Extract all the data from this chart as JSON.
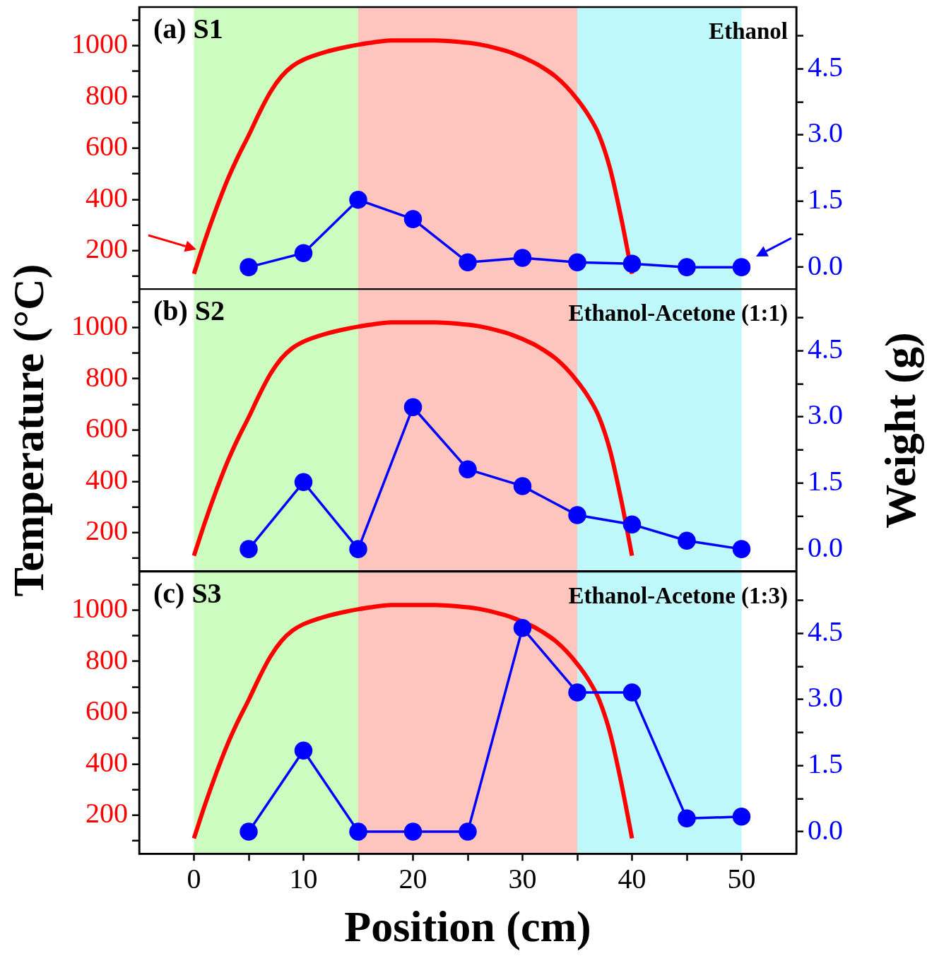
{
  "chart_data": [
    {
      "type": "line",
      "annotations": [
        "(a) S1",
        "Ethanol"
      ],
      "xlim": [
        -5,
        55
      ],
      "ylim": [
        50,
        1150
      ],
      "yticks": [
        {
          "value": 100,
          "label": null
        },
        200,
        {
          "value": 300,
          "label": null
        },
        400,
        {
          "value": 500,
          "label": null
        },
        600,
        {
          "value": 700,
          "label": null
        },
        800,
        {
          "value": 900,
          "label": null
        },
        1000,
        {
          "value": 1100,
          "label": null
        }
      ],
      "y2lim": [
        -0.5,
        5.9
      ],
      "y2ticks": [
        {
          "value": 0,
          "label": "0.0"
        },
        {
          "value": 0.75,
          "label": null
        },
        {
          "value": 1.5,
          "label": "1.5"
        },
        {
          "value": 2.25,
          "label": null
        },
        {
          "value": 3,
          "label": "3.0"
        },
        {
          "value": 3.75,
          "label": null
        },
        {
          "value": 4.5,
          "label": "4.5"
        },
        {
          "value": 5.25,
          "label": null
        }
      ],
      "tick_labels": "y",
      "bands": [
        {
          "axis": "x",
          "from": 0,
          "to": 15,
          "color": "#ccfcc0"
        },
        {
          "axis": "x",
          "from": 15,
          "to": 35,
          "color": "#fdc5bd"
        },
        {
          "axis": "x",
          "from": 35,
          "to": 50,
          "color": "#bff8fb"
        }
      ],
      "series": [
        {
          "color": "#ff0000",
          "marker": "none",
          "x": [
            0,
            1,
            2,
            3,
            4,
            5,
            6,
            7,
            8,
            9,
            10,
            12,
            14,
            16,
            18,
            20,
            22,
            24,
            26,
            28,
            29,
            31,
            32,
            33,
            34,
            35,
            36,
            37,
            38,
            39,
            40
          ],
          "values": [
            110,
            240,
            360,
            470,
            565,
            650,
            740,
            820,
            880,
            920,
            945,
            975,
            995,
            1010,
            1020,
            1020,
            1020,
            1015,
            1005,
            985,
            972,
            935,
            910,
            880,
            840,
            790,
            730,
            650,
            520,
            330,
            110
          ]
        },
        {
          "axis": "y2",
          "color": "#0000ff",
          "marker": "circle",
          "x": [
            5,
            10,
            15,
            20,
            25,
            30,
            35,
            40,
            45,
            50
          ],
          "values": [
            0,
            0.32,
            1.53,
            1.09,
            0.11,
            0.21,
            0.11,
            0.08,
            0,
            0
          ]
        }
      ]
    },
    {
      "type": "line",
      "annotations": [
        "(b) S2",
        "Ethanol-Acetone (1:1)"
      ],
      "ylabel": "Temperature (°C)",
      "y2label": "Weight (g)",
      "xlim": [
        -5,
        55
      ],
      "ylim": [
        50,
        1150
      ],
      "yticks": [
        {
          "value": 100,
          "label": null
        },
        200,
        {
          "value": 300,
          "label": null
        },
        400,
        {
          "value": 500,
          "label": null
        },
        600,
        {
          "value": 700,
          "label": null
        },
        800,
        {
          "value": 900,
          "label": null
        },
        1000,
        {
          "value": 1100,
          "label": null
        }
      ],
      "y2lim": [
        -0.5,
        5.9
      ],
      "y2ticks": [
        {
          "value": 0,
          "label": "0.0"
        },
        {
          "value": 0.75,
          "label": null
        },
        {
          "value": 1.5,
          "label": "1.5"
        },
        {
          "value": 2.25,
          "label": null
        },
        {
          "value": 3,
          "label": "3.0"
        },
        {
          "value": 3.75,
          "label": null
        },
        {
          "value": 4.5,
          "label": "4.5"
        },
        {
          "value": 5.25,
          "label": null
        }
      ],
      "tick_labels": "y",
      "bands": [
        {
          "axis": "x",
          "from": 0,
          "to": 15,
          "color": "#ccfcc0"
        },
        {
          "axis": "x",
          "from": 15,
          "to": 35,
          "color": "#fdc5bd"
        },
        {
          "axis": "x",
          "from": 35,
          "to": 50,
          "color": "#bff8fb"
        }
      ],
      "series": [
        {
          "color": "#ff0000",
          "marker": "none",
          "x": [
            0,
            1,
            2,
            3,
            4,
            5,
            6,
            7,
            8,
            9,
            10,
            12,
            14,
            16,
            18,
            20,
            22,
            24,
            26,
            28,
            29,
            31,
            32,
            33,
            34,
            35,
            36,
            37,
            38,
            39,
            40
          ],
          "values": [
            110,
            240,
            360,
            470,
            565,
            650,
            740,
            820,
            880,
            920,
            945,
            975,
            995,
            1010,
            1020,
            1020,
            1020,
            1015,
            1005,
            985,
            972,
            935,
            910,
            880,
            840,
            790,
            730,
            650,
            520,
            330,
            110
          ]
        },
        {
          "axis": "y2",
          "color": "#0000ff",
          "marker": "circle",
          "x": [
            5,
            10,
            15,
            20,
            25,
            30,
            35,
            40,
            45,
            50
          ],
          "values": [
            0,
            1.52,
            0,
            3.22,
            1.81,
            1.43,
            0.77,
            0.56,
            0.19,
            0
          ]
        }
      ]
    },
    {
      "type": "line",
      "annotations": [
        "(c) S3",
        "Ethanol-Acetone (1:3)"
      ],
      "xlabel": "Position (cm)",
      "xlim": [
        -5,
        55
      ],
      "xticks": [
        0,
        {
          "value": 5,
          "label": null
        },
        10,
        {
          "value": 15,
          "label": null
        },
        20,
        {
          "value": 25,
          "label": null
        },
        30,
        {
          "value": 35,
          "label": null
        },
        40,
        {
          "value": 45,
          "label": null
        },
        50
      ],
      "ylim": [
        50,
        1150
      ],
      "yticks": [
        {
          "value": 100,
          "label": null
        },
        200,
        {
          "value": 300,
          "label": null
        },
        400,
        {
          "value": 500,
          "label": null
        },
        600,
        {
          "value": 700,
          "label": null
        },
        800,
        {
          "value": 900,
          "label": null
        },
        1000,
        {
          "value": 1100,
          "label": null
        }
      ],
      "y2lim": [
        -0.5,
        5.9
      ],
      "y2ticks": [
        {
          "value": 0,
          "label": "0.0"
        },
        {
          "value": 0.75,
          "label": null
        },
        {
          "value": 1.5,
          "label": "1.5"
        },
        {
          "value": 2.25,
          "label": null
        },
        {
          "value": 3,
          "label": "3.0"
        },
        {
          "value": 3.75,
          "label": null
        },
        {
          "value": 4.5,
          "label": "4.5"
        },
        {
          "value": 5.25,
          "label": null
        }
      ],
      "bands": [
        {
          "axis": "x",
          "from": 0,
          "to": 15,
          "color": "#ccfcc0"
        },
        {
          "axis": "x",
          "from": 15,
          "to": 35,
          "color": "#fdc5bd"
        },
        {
          "axis": "x",
          "from": 35,
          "to": 50,
          "color": "#bff8fb"
        }
      ],
      "series": [
        {
          "color": "#ff0000",
          "marker": "none",
          "x": [
            0,
            1,
            2,
            3,
            4,
            5,
            6,
            7,
            8,
            9,
            10,
            12,
            14,
            16,
            18,
            20,
            22,
            24,
            26,
            28,
            29,
            31,
            32,
            33,
            34,
            35,
            36,
            37,
            38,
            39,
            40
          ],
          "values": [
            110,
            240,
            360,
            470,
            565,
            650,
            740,
            820,
            880,
            920,
            945,
            975,
            995,
            1010,
            1020,
            1020,
            1020,
            1015,
            1005,
            985,
            972,
            935,
            910,
            880,
            840,
            790,
            730,
            650,
            520,
            330,
            110
          ]
        },
        {
          "axis": "y2",
          "color": "#0000ff",
          "marker": "circle",
          "x": [
            5,
            10,
            15,
            20,
            25,
            30,
            35,
            40,
            45,
            50
          ],
          "values": [
            0,
            1.84,
            0,
            0,
            0,
            4.62,
            3.16,
            3.16,
            0.3,
            0.34
          ]
        }
      ]
    }
  ]
}
